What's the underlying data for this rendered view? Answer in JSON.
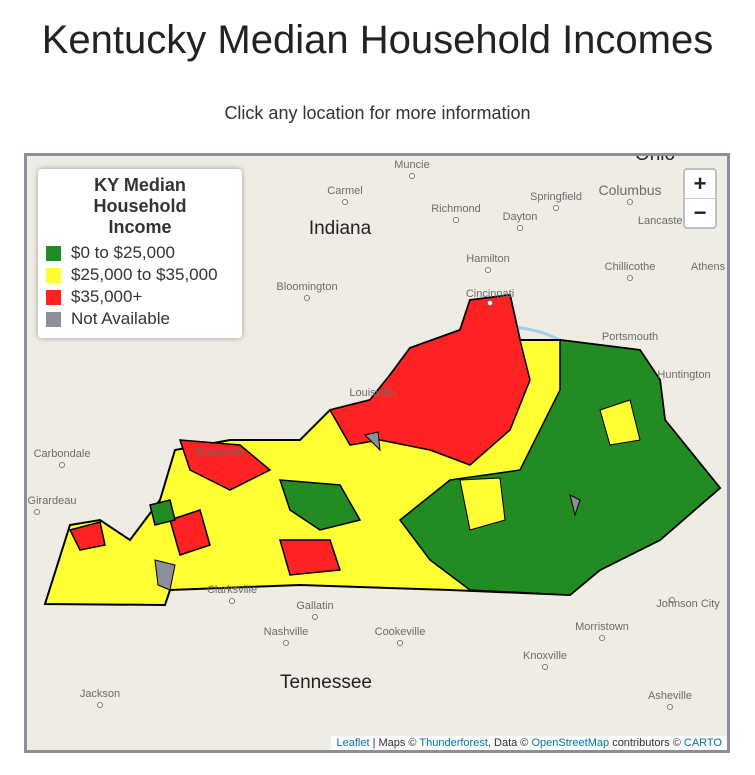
{
  "header": {
    "title": "Kentucky Median Household Incomes",
    "subtitle": "Click any location for more information"
  },
  "legend": {
    "title": "KY Median Household Income",
    "items": [
      {
        "label": "$0 to $25,000",
        "color": "#228b22"
      },
      {
        "label": "$25,000 to $35,000",
        "color": "#ffff33"
      },
      {
        "label": "$35,000+",
        "color": "#ff2222"
      },
      {
        "label": "Not Available",
        "color": "#8a8f9a"
      }
    ]
  },
  "zoom": {
    "in": "+",
    "out": "−"
  },
  "places": [
    "Ohio",
    "Muncie",
    "Carmel",
    "Columbus",
    "Indiana",
    "Richmond",
    "Springfield",
    "Dayton",
    "Lancaster",
    "Hamilton",
    "Chillicothe",
    "Athens",
    "Bloomington",
    "Cincinnati",
    "Portsmouth",
    "Huntington",
    "Louisville",
    "Evansville",
    "Carbondale",
    "Girardeau",
    "Clarksville",
    "Gallatin",
    "Nashville",
    "Cookeville",
    "Johnson City",
    "Morristown",
    "Knoxville",
    "Tennessee",
    "Jackson",
    "Asheville"
  ],
  "attribution": [
    "Leaflet",
    "| Maps ©",
    "Thunderforest",
    ", Data ©",
    "OpenStreetMap",
    "contributors ©",
    "CARTO"
  ]
}
